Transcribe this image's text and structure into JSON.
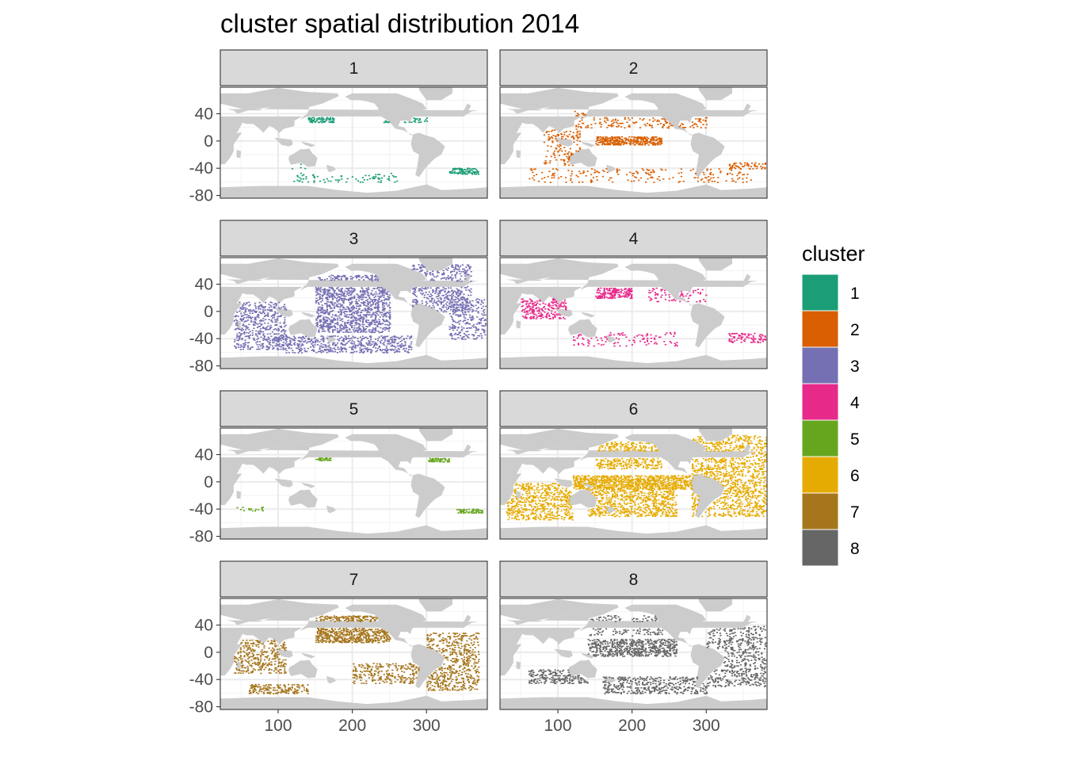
{
  "chart_data": {
    "type": "heatmap",
    "title": "cluster spatial distribution 2014",
    "xlabel": "",
    "ylabel": "",
    "xlim": [
      22,
      382
    ],
    "ylim": [
      -84,
      79
    ],
    "x_ticks": [
      100,
      200,
      300
    ],
    "y_ticks": [
      40,
      0,
      -40,
      -80
    ],
    "grid": true,
    "facets": [
      "1",
      "2",
      "3",
      "4",
      "5",
      "6",
      "7",
      "8"
    ],
    "legend": {
      "title": "cluster",
      "position": "right",
      "entries": [
        {
          "label": "1",
          "color": "#1B9E77"
        },
        {
          "label": "2",
          "color": "#D95F02"
        },
        {
          "label": "3",
          "color": "#7570B3"
        },
        {
          "label": "4",
          "color": "#E7298A"
        },
        {
          "label": "5",
          "color": "#66A61E"
        },
        {
          "label": "6",
          "color": "#E6AB02"
        },
        {
          "label": "7",
          "color": "#A6761D"
        },
        {
          "label": "8",
          "color": "#666666"
        }
      ]
    },
    "land_color": "#CCCCCC",
    "cluster_regions": {
      "1": [
        [
          140,
          175,
          28,
          38,
          0.55
        ],
        [
          240,
          300,
          28,
          40,
          0.3
        ],
        [
          120,
          260,
          -60,
          -45,
          0.1
        ],
        [
          330,
          370,
          -48,
          -38,
          0.5
        ],
        [
          100,
          140,
          -40,
          -30,
          0.08
        ]
      ],
      "2": [
        [
          150,
          240,
          -5,
          8,
          0.55
        ],
        [
          80,
          130,
          -35,
          20,
          0.15
        ],
        [
          240,
          300,
          20,
          45,
          0.2
        ],
        [
          60,
          360,
          -60,
          -40,
          0.08
        ],
        [
          120,
          240,
          20,
          45,
          0.12
        ],
        [
          330,
          380,
          -40,
          -30,
          0.25
        ]
      ],
      "3": [
        [
          150,
          250,
          -30,
          55,
          0.35
        ],
        [
          40,
          110,
          -55,
          15,
          0.25
        ],
        [
          280,
          360,
          0,
          70,
          0.25
        ],
        [
          110,
          280,
          -60,
          -35,
          0.3
        ],
        [
          330,
          380,
          -40,
          20,
          0.2
        ]
      ],
      "4": [
        [
          150,
          200,
          20,
          45,
          0.45
        ],
        [
          50,
          110,
          -10,
          20,
          0.3
        ],
        [
          220,
          300,
          15,
          45,
          0.15
        ],
        [
          120,
          260,
          -50,
          -30,
          0.1
        ],
        [
          330,
          380,
          -45,
          -30,
          0.25
        ]
      ],
      "5": [
        [
          150,
          170,
          32,
          40,
          0.6
        ],
        [
          300,
          330,
          30,
          38,
          0.5
        ],
        [
          340,
          375,
          -45,
          -38,
          0.5
        ],
        [
          40,
          80,
          -42,
          -36,
          0.15
        ]
      ],
      "6": [
        [
          120,
          300,
          -10,
          10,
          0.55
        ],
        [
          30,
          120,
          -55,
          0,
          0.3
        ],
        [
          140,
          260,
          -50,
          -10,
          0.3
        ],
        [
          150,
          240,
          20,
          60,
          0.3
        ],
        [
          280,
          380,
          -50,
          70,
          0.25
        ]
      ],
      "7": [
        [
          150,
          250,
          15,
          55,
          0.45
        ],
        [
          40,
          110,
          -30,
          20,
          0.25
        ],
        [
          200,
          290,
          -45,
          -15,
          0.25
        ],
        [
          300,
          370,
          -55,
          30,
          0.25
        ],
        [
          60,
          140,
          -60,
          -45,
          0.3
        ]
      ],
      "8": [
        [
          140,
          260,
          -5,
          20,
          0.4
        ],
        [
          60,
          140,
          -45,
          -25,
          0.3
        ],
        [
          160,
          300,
          -60,
          -35,
          0.25
        ],
        [
          300,
          380,
          -50,
          40,
          0.2
        ],
        [
          140,
          250,
          25,
          55,
          0.15
        ]
      ]
    }
  }
}
